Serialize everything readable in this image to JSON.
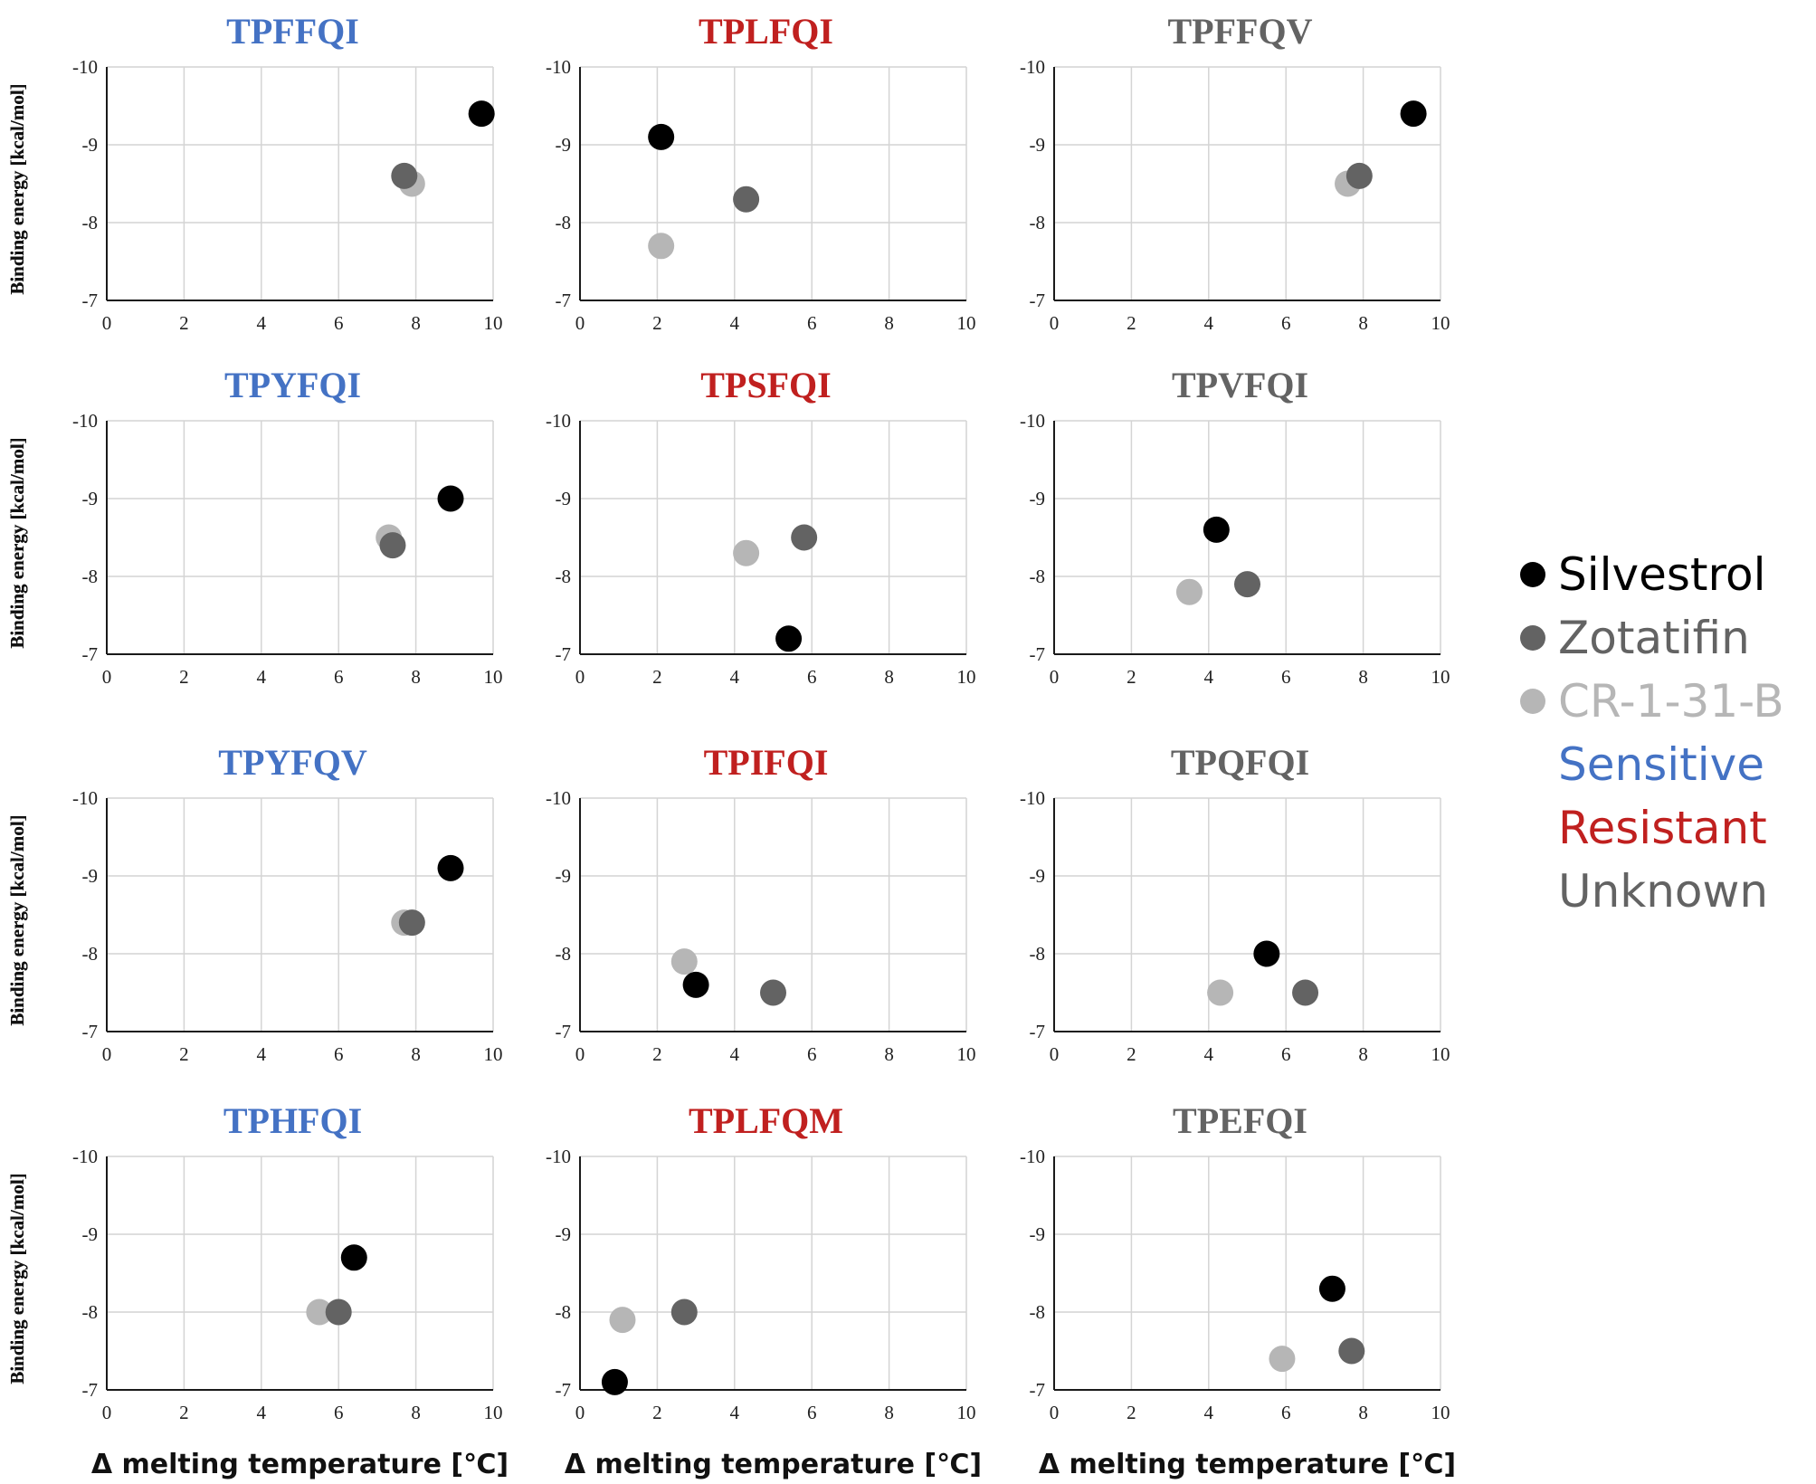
{
  "colors": {
    "silvestrol": "#000000",
    "zotatifin": "#636363",
    "cr1_31b": "#b6b6b6",
    "sensitive": "#4472c4",
    "resistant": "#c0201f",
    "unknown": "#636363",
    "grid": "#d4d4d4"
  },
  "legend": {
    "compounds": [
      {
        "label": "Silvestrol",
        "color": "#000000"
      },
      {
        "label": "Zotatifin",
        "color": "#636363"
      },
      {
        "label": "CR-1-31-B",
        "color": "#b6b6b6"
      }
    ],
    "categories": [
      {
        "label": "Sensitive",
        "color": "#4472c4"
      },
      {
        "label": "Resistant",
        "color": "#c0201f"
      },
      {
        "label": "Unknown",
        "color": "#636363"
      }
    ]
  },
  "chart_data": {
    "type": "scatter",
    "xlabel": "Δ melting temperature [℃]",
    "ylabel": "Binding energy [kcal/mol]",
    "xlim": [
      0,
      10
    ],
    "ylim": [
      -7,
      -10
    ],
    "xticks": [
      "0",
      "2",
      "4",
      "6",
      "8",
      "10"
    ],
    "yticks": [
      "-10",
      "-9",
      "-8",
      "-7"
    ],
    "grid": true,
    "legend_position": "right",
    "panels": [
      {
        "title": "TPFFQI",
        "category": "Sensitive",
        "points": [
          {
            "compound": "Silvestrol",
            "x": 9.7,
            "y": -9.4
          },
          {
            "compound": "Zotatifin",
            "x": 7.7,
            "y": -8.6
          },
          {
            "compound": "CR-1-31-B",
            "x": 7.9,
            "y": -8.5
          }
        ]
      },
      {
        "title": "TPLFQI",
        "category": "Resistant",
        "points": [
          {
            "compound": "Silvestrol",
            "x": 2.1,
            "y": -9.1
          },
          {
            "compound": "Zotatifin",
            "x": 4.3,
            "y": -8.3
          },
          {
            "compound": "CR-1-31-B",
            "x": 2.1,
            "y": -7.7
          }
        ]
      },
      {
        "title": "TPFFQV",
        "category": "Unknown",
        "points": [
          {
            "compound": "Silvestrol",
            "x": 9.3,
            "y": -9.4
          },
          {
            "compound": "Zotatifin",
            "x": 7.9,
            "y": -8.6
          },
          {
            "compound": "CR-1-31-B",
            "x": 7.6,
            "y": -8.5
          }
        ]
      },
      {
        "title": "TPYFQI",
        "category": "Sensitive",
        "points": [
          {
            "compound": "Silvestrol",
            "x": 8.9,
            "y": -9.0
          },
          {
            "compound": "Zotatifin",
            "x": 7.4,
            "y": -8.4
          },
          {
            "compound": "CR-1-31-B",
            "x": 7.3,
            "y": -8.5
          }
        ]
      },
      {
        "title": "TPSFQI",
        "category": "Resistant",
        "points": [
          {
            "compound": "Silvestrol",
            "x": 5.4,
            "y": -7.2
          },
          {
            "compound": "Zotatifin",
            "x": 5.8,
            "y": -8.5
          },
          {
            "compound": "CR-1-31-B",
            "x": 4.3,
            "y": -8.3
          }
        ]
      },
      {
        "title": "TPVFQI",
        "category": "Unknown",
        "points": [
          {
            "compound": "Silvestrol",
            "x": 4.2,
            "y": -8.6
          },
          {
            "compound": "Zotatifin",
            "x": 5.0,
            "y": -7.9
          },
          {
            "compound": "CR-1-31-B",
            "x": 3.5,
            "y": -7.8
          }
        ]
      },
      {
        "title": "TPYFQV",
        "category": "Sensitive",
        "points": [
          {
            "compound": "Silvestrol",
            "x": 8.9,
            "y": -9.1
          },
          {
            "compound": "Zotatifin",
            "x": 7.9,
            "y": -8.4
          },
          {
            "compound": "CR-1-31-B",
            "x": 7.7,
            "y": -8.4
          }
        ]
      },
      {
        "title": "TPIFQI",
        "category": "Resistant",
        "points": [
          {
            "compound": "Silvestrol",
            "x": 3.0,
            "y": -7.6
          },
          {
            "compound": "Zotatifin",
            "x": 5.0,
            "y": -7.5
          },
          {
            "compound": "CR-1-31-B",
            "x": 2.7,
            "y": -7.9
          }
        ]
      },
      {
        "title": "TPQFQI",
        "category": "Unknown",
        "points": [
          {
            "compound": "Silvestrol",
            "x": 5.5,
            "y": -8.0
          },
          {
            "compound": "Zotatifin",
            "x": 6.5,
            "y": -7.5
          },
          {
            "compound": "CR-1-31-B",
            "x": 4.3,
            "y": -7.5
          }
        ]
      },
      {
        "title": "TPHFQI",
        "category": "Sensitive",
        "points": [
          {
            "compound": "Silvestrol",
            "x": 6.4,
            "y": -8.7
          },
          {
            "compound": "Zotatifin",
            "x": 6.0,
            "y": -8.0
          },
          {
            "compound": "CR-1-31-B",
            "x": 5.5,
            "y": -8.0
          }
        ]
      },
      {
        "title": "TPLFQM",
        "category": "Resistant",
        "points": [
          {
            "compound": "Silvestrol",
            "x": 0.9,
            "y": -7.1
          },
          {
            "compound": "Zotatifin",
            "x": 2.7,
            "y": -8.0
          },
          {
            "compound": "CR-1-31-B",
            "x": 1.1,
            "y": -7.9
          }
        ]
      },
      {
        "title": "TPEFQI",
        "category": "Unknown",
        "points": [
          {
            "compound": "Silvestrol",
            "x": 7.2,
            "y": -8.3
          },
          {
            "compound": "Zotatifin",
            "x": 7.7,
            "y": -7.5
          },
          {
            "compound": "CR-1-31-B",
            "x": 5.9,
            "y": -7.4
          }
        ]
      }
    ]
  }
}
